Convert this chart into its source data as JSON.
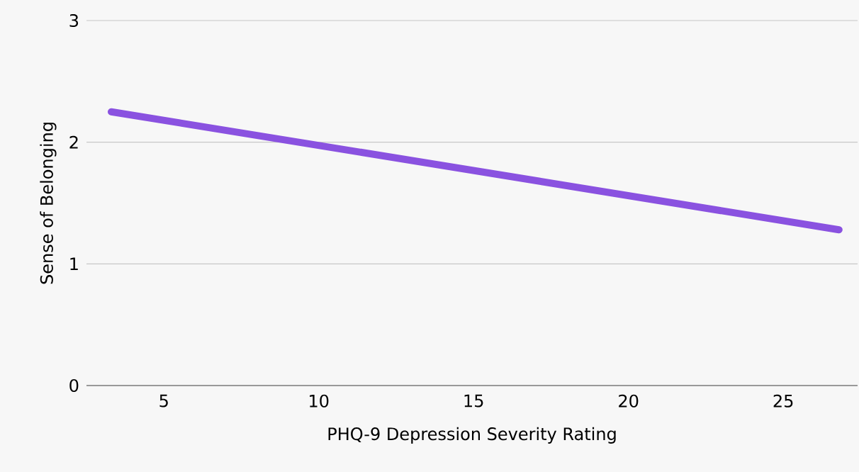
{
  "chart_data": {
    "type": "line",
    "xlabel": "PHQ-9 Depression Severity Rating",
    "ylabel": "Sense of Belonging",
    "series": [
      {
        "color": "#8a52e0",
        "x": [
          3.3,
          26.8
        ],
        "values": [
          2.25,
          1.28
        ]
      }
    ],
    "xlim": [
      2.5,
      27.4
    ],
    "ylim": [
      0,
      3
    ],
    "xticks": [
      5,
      10,
      15,
      20,
      25
    ],
    "yticks": [
      0,
      1,
      2,
      3
    ],
    "grid": "y",
    "line_style": "solid"
  }
}
